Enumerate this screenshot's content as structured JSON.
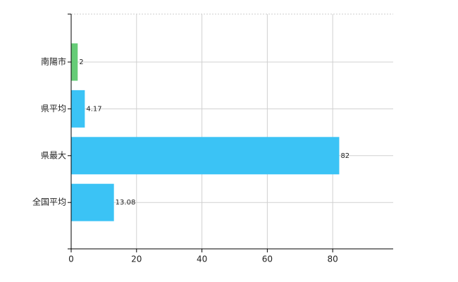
{
  "chart_data": {
    "type": "bar",
    "orientation": "horizontal",
    "categories": [
      "南陽市",
      "県平均",
      "県最大",
      "全国平均"
    ],
    "values": [
      2,
      4.17,
      82,
      13.08
    ],
    "colors": [
      "#66cc77",
      "#3bc3f5",
      "#3bc3f5",
      "#3bc3f5"
    ],
    "xlim": [
      0,
      98.5
    ],
    "xticks": [
      0,
      20,
      40,
      60,
      80
    ],
    "grid": true
  }
}
